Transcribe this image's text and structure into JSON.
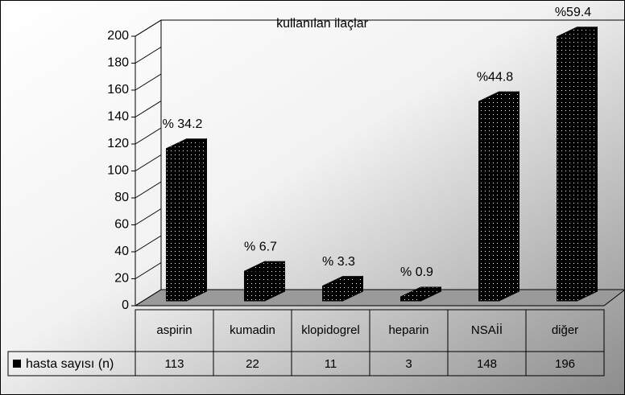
{
  "chart_data": {
    "type": "bar3d",
    "title": "kullanılan ilaçlar",
    "categories": [
      "aspirin",
      "kumadin",
      "klopidogrel",
      "heparin",
      "NSAİİ",
      "diğer"
    ],
    "series": [
      {
        "name": "hasta sayısı (n)",
        "color": "#000000",
        "values": [
          113,
          22,
          11,
          3,
          148,
          196
        ]
      }
    ],
    "annotations": [
      "% 34.2",
      "% 6.7",
      "% 3.3",
      "% 0.9",
      "%44.8",
      "%59.4"
    ],
    "ylim": [
      0,
      200
    ],
    "yticks": [
      0,
      20,
      40,
      60,
      80,
      100,
      120,
      140,
      160,
      180,
      200
    ],
    "grid": true
  }
}
